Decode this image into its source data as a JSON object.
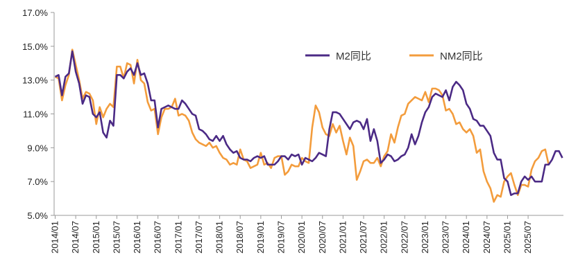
{
  "chart_data": {
    "type": "line",
    "title": "",
    "xlabel": "",
    "ylabel": "",
    "ylim": [
      5.0,
      17.0
    ],
    "y_ticks": [
      "5.0%",
      "7.0%",
      "9.0%",
      "11.0%",
      "13.0%",
      "15.0%",
      "17.0%"
    ],
    "x_tick_labels": [
      "2014/01",
      "2014/07",
      "2015/01",
      "2015/07",
      "2016/01",
      "2016/07",
      "2017/01",
      "2017/07",
      "2018/01",
      "2018/07",
      "2019/01",
      "2019/07",
      "2020/01",
      "2020/07",
      "2021/01",
      "2021/07",
      "2022/01",
      "2022/07",
      "2023/01",
      "2023/07",
      "2024/01",
      "2024/07",
      "2025/01",
      "2025/07"
    ],
    "x_start": "2014/01",
    "grid": false,
    "legend_position": "top-right",
    "colors": {
      "M2": "#4B2A85",
      "NM2": "#F39C3C"
    },
    "series": [
      {
        "name": "M2同比",
        "key": "M2",
        "values": [
          13.2,
          13.3,
          12.1,
          13.2,
          13.4,
          14.7,
          13.5,
          12.8,
          11.6,
          12.1,
          12.0,
          11.0,
          10.8,
          11.1,
          9.9,
          9.6,
          10.6,
          10.3,
          13.3,
          13.3,
          13.1,
          13.5,
          13.7,
          13.3,
          14.0,
          13.3,
          13.4,
          12.8,
          11.8,
          11.8,
          10.2,
          11.3,
          11.4,
          11.5,
          11.4,
          11.3,
          11.3,
          11.8,
          11.6,
          11.3,
          11.0,
          10.9,
          10.1,
          10.0,
          9.8,
          9.5,
          9.4,
          9.7,
          9.4,
          9.7,
          9.2,
          8.9,
          8.7,
          8.8,
          8.4,
          8.3,
          8.3,
          8.2,
          8.4,
          8.5,
          8.4,
          8.5,
          8.0,
          8.0,
          8.0,
          8.2,
          8.5,
          8.5,
          8.3,
          8.6,
          8.5,
          8.6,
          8.0,
          8.4,
          8.3,
          8.2,
          8.4,
          8.7,
          8.6,
          8.5,
          10.1,
          11.1,
          11.1,
          11.0,
          10.7,
          10.4,
          10.1,
          10.5,
          10.6,
          10.5,
          10.1,
          10.7,
          9.4,
          10.1,
          9.4,
          8.1,
          8.3,
          8.6,
          8.5,
          8.2,
          8.3,
          8.5,
          8.6,
          9.0,
          9.8,
          9.2,
          9.7,
          10.5,
          11.1,
          11.4,
          12.0,
          12.2,
          12.1,
          12.0,
          12.4,
          11.8,
          12.6,
          12.9,
          12.7,
          12.4,
          11.6,
          11.3,
          10.7,
          10.6,
          10.3,
          10.3,
          10.0,
          9.7,
          8.7,
          8.3,
          8.3,
          7.2,
          7.0,
          6.2,
          6.3,
          6.3,
          7.0,
          7.3,
          7.1,
          7.3,
          7.0,
          7.0,
          7.0,
          8.0,
          8.0,
          8.3,
          8.8,
          8.8,
          8.4
        ]
      },
      {
        "name": "NM2同比",
        "key": "NM2",
        "values": [
          13.2,
          13.1,
          11.8,
          12.7,
          13.3,
          14.8,
          13.9,
          13.0,
          11.9,
          12.3,
          12.2,
          11.8,
          10.4,
          11.4,
          10.8,
          11.3,
          11.6,
          11.4,
          13.8,
          13.8,
          13.1,
          14.0,
          13.9,
          12.8,
          14.2,
          13.0,
          12.8,
          11.7,
          11.2,
          11.3,
          9.8,
          10.8,
          11.3,
          11.3,
          11.4,
          11.9,
          10.9,
          11.0,
          10.9,
          10.6,
          9.9,
          9.5,
          9.3,
          9.2,
          9.1,
          9.3,
          9.0,
          9.1,
          8.7,
          8.4,
          8.3,
          8.0,
          8.1,
          8.0,
          8.9,
          8.3,
          8.2,
          7.8,
          7.9,
          8.0,
          8.7,
          8.0,
          8.1,
          7.8,
          8.4,
          8.5,
          8.5,
          7.4,
          7.6,
          8.0,
          7.9,
          7.9,
          8.4,
          8.2,
          8.1,
          10.2,
          11.5,
          11.1,
          10.2,
          9.8,
          9.7,
          10.4,
          9.9,
          10.3,
          9.4,
          8.6,
          9.6,
          9.1,
          7.1,
          7.6,
          8.2,
          8.3,
          8.1,
          8.1,
          8.4,
          7.9,
          8.5,
          8.8,
          9.8,
          9.3,
          10.2,
          10.9,
          11.0,
          11.6,
          11.8,
          12.0,
          11.9,
          11.8,
          12.3,
          11.7,
          12.5,
          12.5,
          12.4,
          12.1,
          11.2,
          11.3,
          11.0,
          10.4,
          10.5,
          10.1,
          9.9,
          10.1,
          9.7,
          8.7,
          8.9,
          7.6,
          7.0,
          6.6,
          5.8,
          6.2,
          6.1,
          7.0,
          7.3,
          7.5,
          6.8,
          6.2,
          6.8,
          6.8,
          6.7,
          7.7,
          8.2,
          8.4,
          8.8,
          8.9,
          8.0
        ]
      }
    ]
  }
}
